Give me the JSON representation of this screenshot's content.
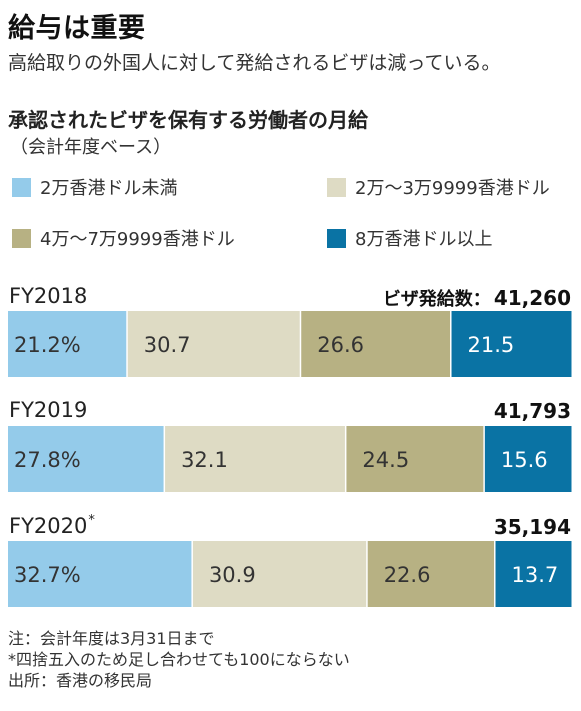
{
  "header": {
    "title": "給与は重要",
    "subtitle": "高給取りの外国人に対して発給されるビザは減っている。"
  },
  "chart_data": {
    "type": "bar",
    "orientation": "horizontal-stacked-100",
    "title": "承認されたビザを保有する労働者の月給",
    "subtitle": "（会計年度ベース）",
    "total_label": "ビザ発給数：",
    "series": [
      {
        "name": "2万香港ドル未満",
        "color": "#94cbea"
      },
      {
        "name": "2万〜3万9999香港ドル",
        "color": "#dedbc4"
      },
      {
        "name": "4万〜7万9999香港ドル",
        "color": "#b7b183"
      },
      {
        "name": "8万香港ドル以上",
        "color": "#0a73a4"
      }
    ],
    "rows": [
      {
        "label": "FY2018",
        "asterisk": "",
        "total": "41,260",
        "values": [
          21.2,
          30.7,
          26.6,
          21.5
        ],
        "value_labels": [
          "21.2%",
          "30.7",
          "26.6",
          "21.5"
        ]
      },
      {
        "label": "FY2019",
        "asterisk": "",
        "total": "41,793",
        "values": [
          27.8,
          32.1,
          24.5,
          15.6
        ],
        "value_labels": [
          "27.8%",
          "32.1",
          "24.5",
          "15.6"
        ]
      },
      {
        "label": "FY2020",
        "asterisk": "*",
        "total": "35,194",
        "values": [
          32.7,
          30.9,
          22.6,
          13.7
        ],
        "value_labels": [
          "32.7%",
          "30.9",
          "22.6",
          "13.7"
        ]
      }
    ]
  },
  "notes": [
    "注：会計年度は3月31日まで",
    "*四捨五入のため足し合わせても100にならない",
    "出所：香港の移民局"
  ]
}
